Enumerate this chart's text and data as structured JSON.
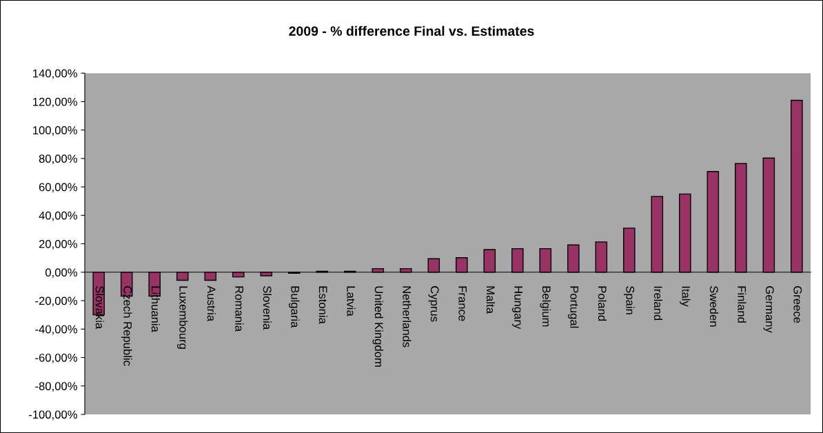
{
  "chart_data": {
    "type": "bar",
    "title": "2009 - % difference Final vs. Estimates",
    "categories": [
      "Slovakia",
      "Czech Republic",
      "Lithuania",
      "Luxembourg",
      "Austria",
      "Romania",
      "Slovenia",
      "Bulgaria",
      "Estonia",
      "Latvia",
      "United Kingdom",
      "Netherlands",
      "Cyprus",
      "France",
      "Malta",
      "Hungary",
      "Belgium",
      "Portugal",
      "Poland",
      "Spain",
      "Ireland",
      "Italy",
      "Sweden",
      "Finland",
      "Germany",
      "Greece"
    ],
    "values": [
      -30,
      -16.8,
      -16.8,
      -5.7,
      -5.7,
      -3.3,
      -2.5,
      -0.7,
      0.7,
      0.7,
      2.5,
      2.5,
      9.5,
      10.2,
      15.9,
      16.6,
      16.6,
      19.2,
      21.3,
      31,
      53.3,
      55,
      70.8,
      76.4,
      80.3,
      120.9
    ],
    "color": "#993366",
    "ylim": [
      -100,
      140
    ],
    "yticks": [
      {
        "value": -100,
        "label": "-100,00%"
      },
      {
        "value": -80,
        "label": "-80,00%"
      },
      {
        "value": -60,
        "label": "-60,00%"
      },
      {
        "value": -40,
        "label": "-40,00%"
      },
      {
        "value": -20,
        "label": "-20,00%"
      },
      {
        "value": 0,
        "label": "0,00%"
      },
      {
        "value": 20,
        "label": "20,00%"
      },
      {
        "value": 40,
        "label": "40,00%"
      },
      {
        "value": 60,
        "label": "60,00%"
      },
      {
        "value": 80,
        "label": "80,00%"
      },
      {
        "value": 100,
        "label": "100,00%"
      },
      {
        "value": 120,
        "label": "120,00%"
      },
      {
        "value": 140,
        "label": "140,00%"
      }
    ],
    "grid": false,
    "legend": false
  }
}
